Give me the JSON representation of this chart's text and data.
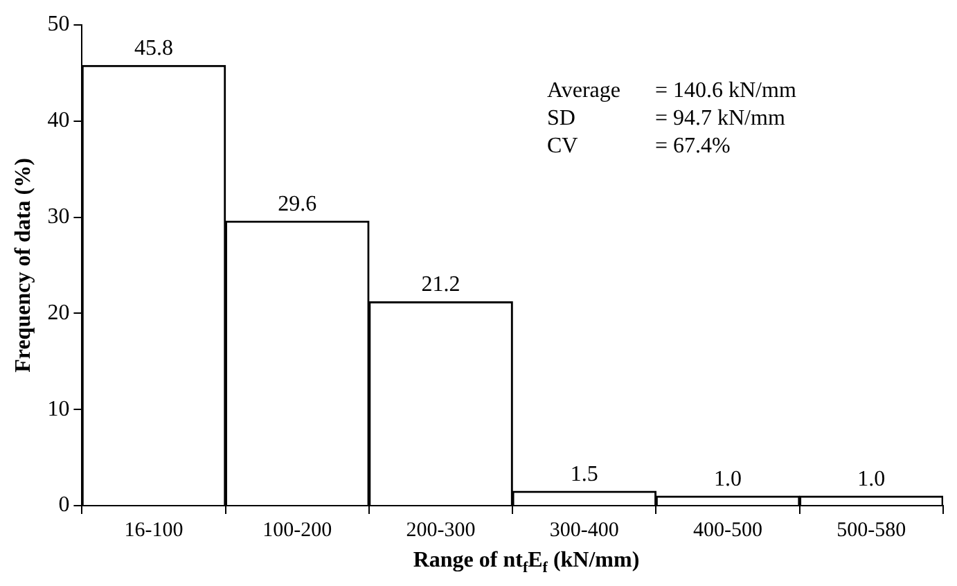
{
  "chart_data": {
    "type": "bar",
    "categories": [
      "16-100",
      "100-200",
      "200-300",
      "300-400",
      "400-500",
      "500-580"
    ],
    "values": [
      45.8,
      29.6,
      21.2,
      1.5,
      1.0,
      1.0
    ],
    "value_labels": [
      "45.8",
      "29.6",
      "21.2",
      "1.5",
      "1.0",
      "1.0"
    ],
    "color": "#ffffff",
    "xlabel": "Range of nt$_{f}$E$_{f}$ (kN/mm)",
    "ylabel": "Frequency of data (%)",
    "ylim": [
      0,
      50
    ],
    "yticks": [
      0,
      10,
      20,
      30,
      40,
      50
    ],
    "grid": false,
    "legend": false,
    "annotations": [
      "Average = 140.6 kN/mm",
      "SD = 94.7 kN/mm",
      "CV = 67.4%"
    ]
  }
}
